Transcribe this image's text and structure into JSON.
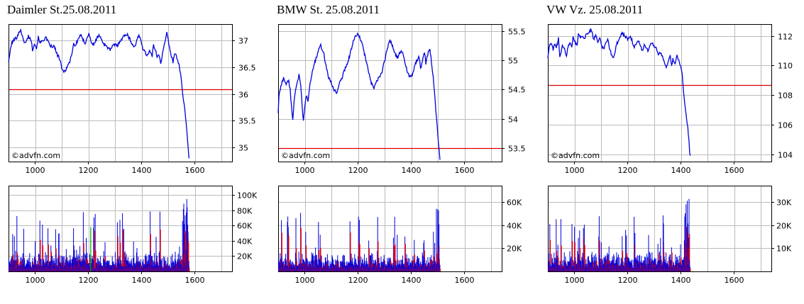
{
  "colors": {
    "price_line": "#0000dd",
    "reference_line": "#dd0000",
    "volume_up": "#0000dd",
    "volume_down": "#ee0000",
    "volume_neutral": "#00aa00",
    "grid": "#bbbbbb",
    "frame": "#000000"
  },
  "chart_data": [
    {
      "name": "daimler",
      "type": "line",
      "title": "Daimler St.25.08.2011",
      "watermark": "©advfn.com",
      "x_ticks": [
        1000,
        1200,
        1400,
        1600
      ],
      "xlim": [
        900,
        1740
      ],
      "price": {
        "y_ticks": [
          35,
          35.5,
          36,
          36.5,
          37
        ],
        "ylim": [
          34.74,
          37.3
        ],
        "reference": 36.08,
        "points": [
          [
            900,
            36.6
          ],
          [
            905,
            36.75
          ],
          [
            912,
            36.95
          ],
          [
            920,
            37.0
          ],
          [
            930,
            37.05
          ],
          [
            940,
            37.15
          ],
          [
            946,
            37.2
          ],
          [
            955,
            37.0
          ],
          [
            965,
            36.95
          ],
          [
            975,
            37.08
          ],
          [
            985,
            37.0
          ],
          [
            990,
            36.82
          ],
          [
            997,
            36.95
          ],
          [
            1005,
            36.85
          ],
          [
            1012,
            37.05
          ],
          [
            1020,
            36.95
          ],
          [
            1030,
            37.0
          ],
          [
            1040,
            37.05
          ],
          [
            1050,
            36.95
          ],
          [
            1058,
            36.9
          ],
          [
            1065,
            36.85
          ],
          [
            1072,
            36.9
          ],
          [
            1080,
            36.75
          ],
          [
            1088,
            36.7
          ],
          [
            1095,
            36.6
          ],
          [
            1100,
            36.45
          ],
          [
            1110,
            36.42
          ],
          [
            1120,
            36.5
          ],
          [
            1130,
            36.6
          ],
          [
            1140,
            36.8
          ],
          [
            1145,
            36.95
          ],
          [
            1150,
            36.88
          ],
          [
            1160,
            37.0
          ],
          [
            1170,
            37.1
          ],
          [
            1180,
            37.0
          ],
          [
            1188,
            36.95
          ],
          [
            1195,
            37.05
          ],
          [
            1202,
            37.12
          ],
          [
            1210,
            36.98
          ],
          [
            1220,
            36.9
          ],
          [
            1230,
            37.02
          ],
          [
            1240,
            37.1
          ],
          [
            1250,
            37.0
          ],
          [
            1260,
            36.92
          ],
          [
            1268,
            36.9
          ],
          [
            1275,
            36.85
          ],
          [
            1282,
            36.82
          ],
          [
            1290,
            36.88
          ],
          [
            1300,
            36.92
          ],
          [
            1310,
            36.9
          ],
          [
            1320,
            37.0
          ],
          [
            1330,
            37.05
          ],
          [
            1338,
            37.1
          ],
          [
            1345,
            37.12
          ],
          [
            1352,
            37.05
          ],
          [
            1360,
            36.98
          ],
          [
            1368,
            36.9
          ],
          [
            1375,
            36.88
          ],
          [
            1382,
            37.0
          ],
          [
            1390,
            37.08
          ],
          [
            1398,
            37.0
          ],
          [
            1405,
            36.85
          ],
          [
            1412,
            36.78
          ],
          [
            1420,
            36.72
          ],
          [
            1430,
            36.8
          ],
          [
            1440,
            36.7
          ],
          [
            1445,
            36.9
          ],
          [
            1450,
            36.85
          ],
          [
            1458,
            36.7
          ],
          [
            1465,
            36.75
          ],
          [
            1472,
            36.58
          ],
          [
            1478,
            36.72
          ],
          [
            1485,
            36.9
          ],
          [
            1490,
            37.0
          ],
          [
            1495,
            37.15
          ],
          [
            1500,
            37.0
          ],
          [
            1507,
            36.8
          ],
          [
            1513,
            36.7
          ],
          [
            1518,
            36.6
          ],
          [
            1524,
            36.75
          ],
          [
            1530,
            36.72
          ],
          [
            1536,
            36.62
          ],
          [
            1540,
            36.55
          ],
          [
            1546,
            36.4
          ],
          [
            1550,
            36.2
          ],
          [
            1555,
            36.0
          ],
          [
            1560,
            35.8
          ],
          [
            1565,
            35.6
          ],
          [
            1570,
            35.3
          ],
          [
            1575,
            35.0
          ],
          [
            1578,
            34.8
          ]
        ]
      },
      "volume": {
        "y_ticks": [
          "20K",
          "40K",
          "60K",
          "80K",
          "100K"
        ],
        "tick_values": [
          20000,
          40000,
          60000,
          80000,
          100000
        ],
        "ylim": [
          0,
          112000
        ]
      }
    },
    {
      "name": "bmw",
      "type": "line",
      "title": "BMW St. 25.08.2011",
      "watermark": "©advfn.com",
      "x_ticks": [
        1000,
        1200,
        1400,
        1600
      ],
      "xlim": [
        900,
        1740
      ],
      "price": {
        "y_ticks": [
          53.5,
          54,
          54.5,
          55,
          55.5
        ],
        "ylim": [
          53.27,
          55.62
        ],
        "reference": 53.5,
        "points": [
          [
            900,
            54.1
          ],
          [
            903,
            54.4
          ],
          [
            910,
            54.55
          ],
          [
            920,
            54.7
          ],
          [
            930,
            54.6
          ],
          [
            940,
            54.65
          ],
          [
            945,
            54.5
          ],
          [
            950,
            54.2
          ],
          [
            955,
            54.0
          ],
          [
            960,
            54.3
          ],
          [
            965,
            54.5
          ],
          [
            970,
            54.6
          ],
          [
            978,
            54.75
          ],
          [
            985,
            54.55
          ],
          [
            990,
            54.2
          ],
          [
            995,
            53.95
          ],
          [
            1000,
            54.2
          ],
          [
            1005,
            54.4
          ],
          [
            1012,
            54.3
          ],
          [
            1020,
            54.6
          ],
          [
            1030,
            54.85
          ],
          [
            1040,
            55.0
          ],
          [
            1050,
            55.15
          ],
          [
            1060,
            55.25
          ],
          [
            1070,
            55.15
          ],
          [
            1080,
            54.9
          ],
          [
            1090,
            54.7
          ],
          [
            1100,
            54.6
          ],
          [
            1110,
            54.5
          ],
          [
            1120,
            54.45
          ],
          [
            1130,
            54.6
          ],
          [
            1140,
            54.7
          ],
          [
            1150,
            54.85
          ],
          [
            1160,
            54.95
          ],
          [
            1170,
            55.1
          ],
          [
            1180,
            55.3
          ],
          [
            1190,
            55.4
          ],
          [
            1200,
            55.45
          ],
          [
            1210,
            55.35
          ],
          [
            1220,
            55.2
          ],
          [
            1230,
            55.0
          ],
          [
            1240,
            54.8
          ],
          [
            1250,
            54.6
          ],
          [
            1260,
            54.52
          ],
          [
            1270,
            54.65
          ],
          [
            1280,
            54.7
          ],
          [
            1290,
            54.8
          ],
          [
            1300,
            55.0
          ],
          [
            1310,
            55.2
          ],
          [
            1320,
            55.35
          ],
          [
            1330,
            55.25
          ],
          [
            1340,
            55.1
          ],
          [
            1350,
            55.05
          ],
          [
            1360,
            55.15
          ],
          [
            1370,
            55.1
          ],
          [
            1380,
            54.9
          ],
          [
            1390,
            54.75
          ],
          [
            1400,
            54.7
          ],
          [
            1410,
            54.85
          ],
          [
            1420,
            55.0
          ],
          [
            1430,
            55.05
          ],
          [
            1435,
            54.85
          ],
          [
            1440,
            54.95
          ],
          [
            1450,
            55.15
          ],
          [
            1455,
            54.95
          ],
          [
            1462,
            55.1
          ],
          [
            1470,
            55.2
          ],
          [
            1478,
            54.9
          ],
          [
            1485,
            54.6
          ],
          [
            1490,
            54.3
          ],
          [
            1495,
            54.0
          ],
          [
            1500,
            53.7
          ],
          [
            1505,
            53.45
          ],
          [
            1508,
            53.3
          ]
        ]
      },
      "volume": {
        "y_ticks": [
          "20K",
          "40K",
          "60K"
        ],
        "tick_values": [
          20000,
          40000,
          60000
        ],
        "ylim": [
          0,
          74000
        ]
      }
    },
    {
      "name": "vw",
      "type": "line",
      "title": "VW Vz. 25.08.2011",
      "watermark": "©advfn.com",
      "x_ticks": [
        1000,
        1200,
        1400,
        1600
      ],
      "xlim": [
        900,
        1740
      ],
      "price": {
        "y_ticks": [
          104,
          106,
          108,
          110,
          112
        ],
        "ylim": [
          103.5,
          112.8
        ],
        "reference": 108.7,
        "points": [
          [
            900,
            110.5
          ],
          [
            905,
            111.3
          ],
          [
            912,
            111.6
          ],
          [
            920,
            111.0
          ],
          [
            925,
            111.5
          ],
          [
            932,
            111.2
          ],
          [
            940,
            111.8
          ],
          [
            945,
            110.5
          ],
          [
            950,
            111.0
          ],
          [
            955,
            111.3
          ],
          [
            962,
            111.1
          ],
          [
            970,
            110.7
          ],
          [
            978,
            111.4
          ],
          [
            985,
            111.6
          ],
          [
            990,
            111.3
          ],
          [
            995,
            111.9
          ],
          [
            1002,
            111.6
          ],
          [
            1010,
            111.4
          ],
          [
            1015,
            112.1
          ],
          [
            1022,
            111.9
          ],
          [
            1030,
            112.0
          ],
          [
            1038,
            111.8
          ],
          [
            1045,
            112.2
          ],
          [
            1052,
            112.1
          ],
          [
            1060,
            112.4
          ],
          [
            1066,
            112.2
          ],
          [
            1072,
            111.7
          ],
          [
            1080,
            112.1
          ],
          [
            1088,
            111.6
          ],
          [
            1095,
            111.9
          ],
          [
            1102,
            111.3
          ],
          [
            1110,
            111.1
          ],
          [
            1118,
            111.5
          ],
          [
            1125,
            111.8
          ],
          [
            1130,
            111.3
          ],
          [
            1138,
            110.8
          ],
          [
            1145,
            110.5
          ],
          [
            1152,
            110.9
          ],
          [
            1160,
            111.5
          ],
          [
            1170,
            111.9
          ],
          [
            1180,
            112.2
          ],
          [
            1190,
            112.0
          ],
          [
            1200,
            111.8
          ],
          [
            1210,
            112.0
          ],
          [
            1218,
            111.6
          ],
          [
            1225,
            111.2
          ],
          [
            1232,
            111.5
          ],
          [
            1240,
            111.7
          ],
          [
            1248,
            111.3
          ],
          [
            1255,
            111.0
          ],
          [
            1262,
            111.4
          ],
          [
            1270,
            111.2
          ],
          [
            1278,
            111.0
          ],
          [
            1285,
            111.4
          ],
          [
            1292,
            111.6
          ],
          [
            1300,
            111.3
          ],
          [
            1308,
            111.1
          ],
          [
            1315,
            110.7
          ],
          [
            1322,
            110.9
          ],
          [
            1330,
            110.6
          ],
          [
            1338,
            110.2
          ],
          [
            1345,
            109.9
          ],
          [
            1352,
            110.2
          ],
          [
            1360,
            110.6
          ],
          [
            1365,
            110.0
          ],
          [
            1370,
            110.4
          ],
          [
            1378,
            110.1
          ],
          [
            1385,
            110.7
          ],
          [
            1392,
            110.3
          ],
          [
            1400,
            109.8
          ],
          [
            1405,
            109.5
          ],
          [
            1410,
            108.2
          ],
          [
            1415,
            107.4
          ],
          [
            1418,
            106.8
          ],
          [
            1422,
            106.3
          ],
          [
            1426,
            105.8
          ],
          [
            1430,
            105.0
          ],
          [
            1433,
            104.2
          ],
          [
            1435,
            103.9
          ]
        ]
      },
      "volume": {
        "y_ticks": [
          "10K",
          "20K",
          "30K"
        ],
        "tick_values": [
          10000,
          20000,
          30000
        ],
        "ylim": [
          0,
          37000
        ]
      }
    }
  ]
}
